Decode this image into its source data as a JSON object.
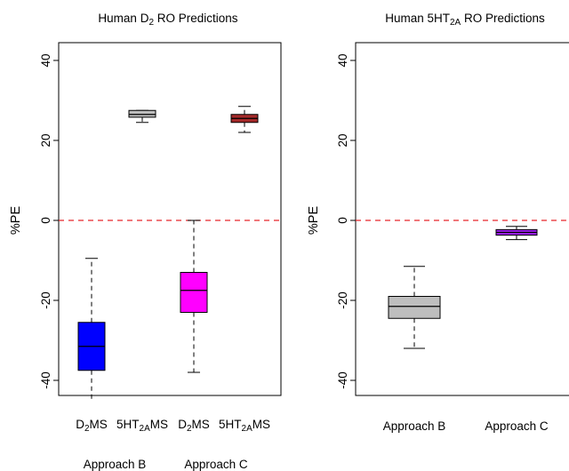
{
  "chart_data": [
    {
      "type": "boxplot",
      "title_text": {
        "pre": "Human D",
        "sub": "2",
        "post": " RO Predictions"
      },
      "ylabel": "%PE",
      "ylim": [
        -45,
        45
      ],
      "yticks": [
        "40",
        "20",
        "0",
        "-20",
        "-40"
      ],
      "ytick_values": [
        40,
        20,
        0,
        -20,
        -40
      ],
      "reference_line": {
        "y": 0,
        "color": "#e8262a",
        "style": "dashed"
      },
      "categories": [
        {
          "pre": "D",
          "sub": "2",
          "post": "MS"
        },
        {
          "pre": "5HT",
          "sub": "2A",
          "post": "MS"
        },
        {
          "pre": "D",
          "sub": "2",
          "post": "MS"
        },
        {
          "pre": "5HT",
          "sub": "2A",
          "post": "MS"
        }
      ],
      "group_labels": [
        "Approach B",
        "Approach C"
      ],
      "boxes": [
        {
          "group": "Approach B",
          "min": -45,
          "q1": -37.5,
          "median": -31.5,
          "q3": -25.5,
          "max": -9.5,
          "color": "#0000ff"
        },
        {
          "group": "Approach B",
          "min": 24.5,
          "q1": 25.8,
          "median": 26.5,
          "q3": 27.5,
          "max": 27.5,
          "color": "#bebebe"
        },
        {
          "group": "Approach C",
          "min": -38,
          "q1": -23,
          "median": -17.5,
          "q3": -13,
          "max": 0,
          "color": "#ff00ff"
        },
        {
          "group": "Approach C",
          "min": 22,
          "q1": 24.5,
          "median": 25.5,
          "q3": 26.5,
          "max": 28.5,
          "color": "#a52a2a"
        }
      ]
    },
    {
      "type": "boxplot",
      "title_text": {
        "pre": "Human 5HT",
        "sub": "2A",
        "post": " RO Predictions"
      },
      "ylabel": "%PE",
      "ylim": [
        -45,
        45
      ],
      "yticks": [
        "40",
        "20",
        "0",
        "-20",
        "-40"
      ],
      "ytick_values": [
        40,
        20,
        0,
        -20,
        -40
      ],
      "reference_line": {
        "y": 0,
        "color": "#e8262a",
        "style": "dashed"
      },
      "categories": [
        "Approach B",
        "Approach C"
      ],
      "boxes": [
        {
          "min": -32,
          "q1": -24.5,
          "median": -21.5,
          "q3": -19,
          "max": -11.5,
          "color": "#bebebe"
        },
        {
          "min": -4.8,
          "q1": -3.7,
          "median": -3,
          "q3": -2.3,
          "max": -1.5,
          "color": "#a020f0"
        }
      ]
    }
  ]
}
